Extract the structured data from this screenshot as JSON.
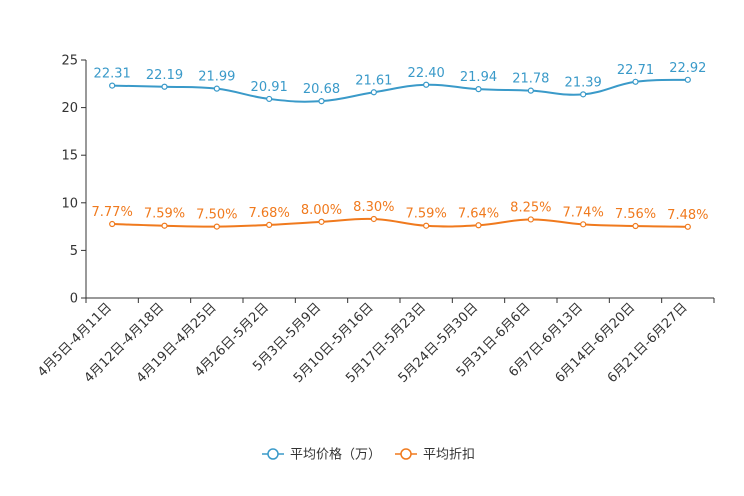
{
  "chart_data": {
    "type": "line",
    "title": "",
    "xlabel": "",
    "ylabel": "",
    "ylim": [
      0,
      25
    ],
    "yticks": [
      0,
      5,
      10,
      15,
      20,
      25
    ],
    "grid": false,
    "legend_position": "bottom",
    "categories": [
      "4月5日-4月11日",
      "4月12日-4月18日",
      "4月19日-4月25日",
      "4月26日-5月2日",
      "5月3日-5月9日",
      "5月10日-5月16日",
      "5月17日-5月23日",
      "5月24日-5月30日",
      "5月31日-6月6日",
      "6月7日-6月13日",
      "6月14日-6月20日",
      "6月21日-6月27日"
    ],
    "series": [
      {
        "name": "平均价格（万）",
        "color": "#3a9ac9",
        "values": [
          22.31,
          22.19,
          21.99,
          20.91,
          20.68,
          21.61,
          22.4,
          21.94,
          21.78,
          21.39,
          22.71,
          22.92
        ],
        "labels": [
          "22.31",
          "22.19",
          "21.99",
          "20.91",
          "20.68",
          "21.61",
          "22.40",
          "21.94",
          "21.78",
          "21.39",
          "22.71",
          "22.92"
        ]
      },
      {
        "name": "平均折扣",
        "color": "#f07a1e",
        "values": [
          7.77,
          7.59,
          7.5,
          7.68,
          8.0,
          8.3,
          7.59,
          7.64,
          8.25,
          7.74,
          7.56,
          7.48
        ],
        "labels": [
          "7.77%",
          "7.59%",
          "7.50%",
          "7.68%",
          "8.00%",
          "8.30%",
          "7.59%",
          "7.64%",
          "8.25%",
          "7.74%",
          "7.56%",
          "7.48%"
        ]
      }
    ]
  }
}
